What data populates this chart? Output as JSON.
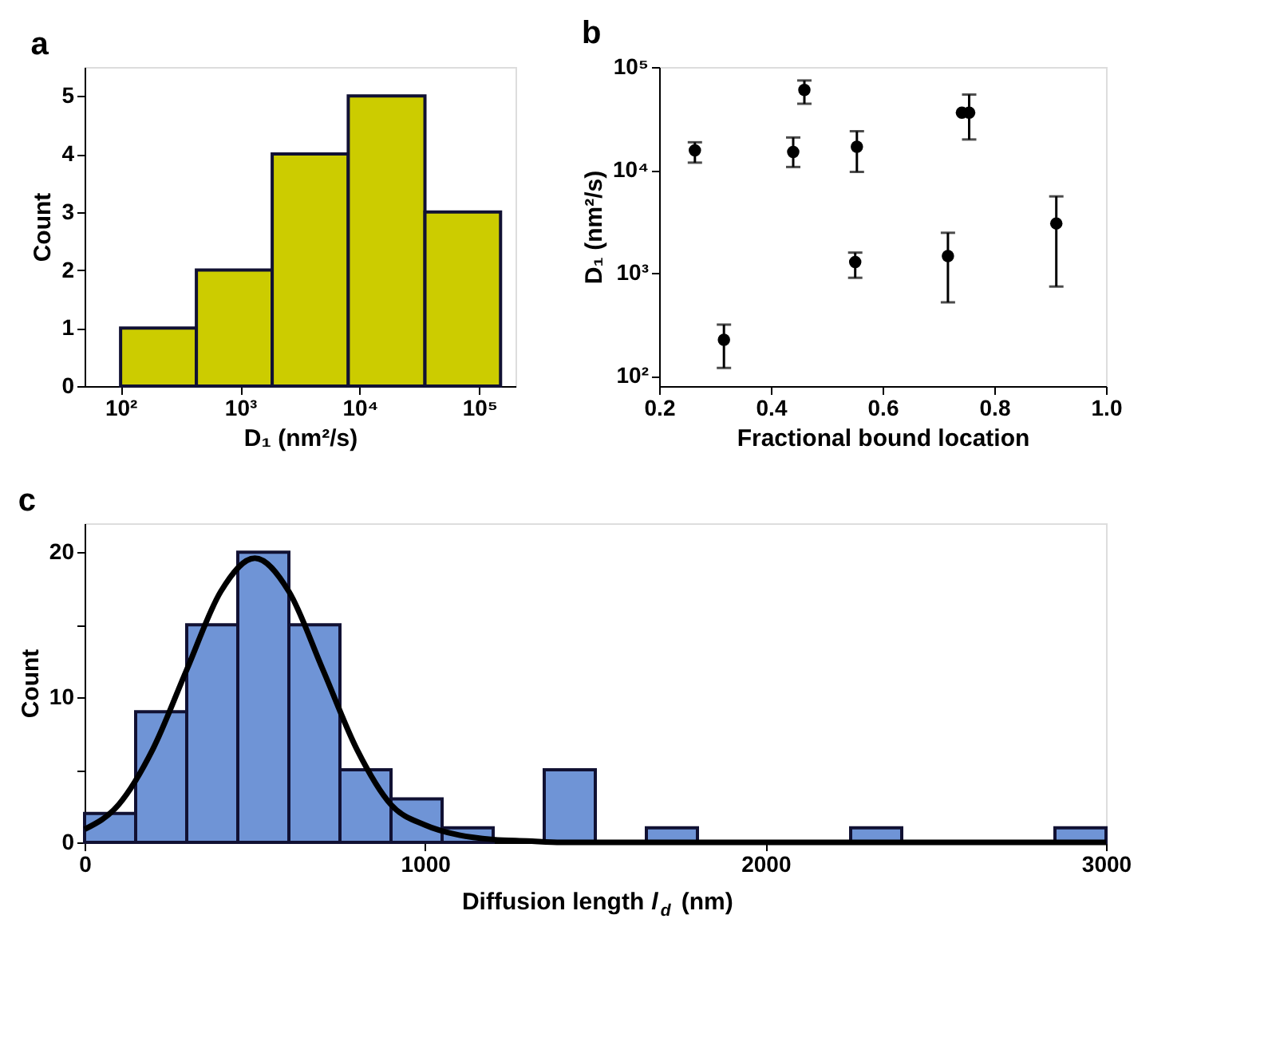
{
  "chart_data": [
    {
      "type": "histogram",
      "title": "a",
      "xlabel": "D₁ (nm²/s)",
      "ylabel": "Count",
      "log": "x",
      "bins": [
        100,
        430,
        1850,
        8000,
        35000,
        150000
      ],
      "values": [
        1,
        2,
        4,
        5,
        3
      ],
      "color": "#cccc00",
      "xlim": [
        50,
        200000
      ],
      "xticks": [
        {
          "value": 100,
          "label": "10²"
        },
        {
          "value": 1000,
          "label": "10³"
        },
        {
          "value": 10000,
          "label": "10⁴"
        },
        {
          "value": 100000,
          "label": "10⁵"
        }
      ],
      "ylim": [
        0,
        5.5
      ],
      "yticks": [
        0,
        1,
        2,
        3,
        4,
        5
      ],
      "grid": false
    },
    {
      "type": "scatter",
      "title": "b",
      "xlabel": "Fractional bound location",
      "ylabel": "D₁ (nm²/s)",
      "log": "y",
      "marker": "circle",
      "color": "#000000",
      "x": [
        0.264,
        0.316,
        0.44,
        0.46,
        0.554,
        0.551,
        0.717,
        0.742,
        0.755,
        0.911
      ],
      "values": [
        15500,
        225,
        15000,
        60000,
        16800,
        1280,
        1460,
        36000,
        36000,
        3030
      ],
      "errors": [
        [
          11800,
          18600
        ],
        [
          120,
          316
        ],
        [
          10700,
          20700
        ],
        [
          44000,
          74000
        ],
        [
          9600,
          23800
        ],
        [
          900,
          1580
        ],
        [
          520,
          2460
        ],
        null,
        [
          19800,
          54000
        ],
        [
          740,
          5550
        ]
      ],
      "xlim": [
        0.2,
        1.0
      ],
      "xticks": [
        0.2,
        0.4,
        0.6,
        0.8,
        {
          "value": 1.0,
          "label": "1.0"
        }
      ],
      "ylim": [
        80,
        100000
      ],
      "yticks": [
        {
          "value": 100,
          "label": "10²"
        },
        {
          "value": 1000,
          "label": "10³"
        },
        {
          "value": 10000,
          "label": "10⁴"
        },
        {
          "value": 100000,
          "label": "10⁵"
        }
      ],
      "grid": false
    },
    {
      "type": "histogram",
      "title": "c",
      "xlabel": "Diffusion length l$_{d}$ (nm)",
      "ylabel": "Count",
      "series": [
        {
          "type": "histogram",
          "color": "#6f94d6",
          "bins": [
            0,
            150,
            300,
            450,
            600,
            750,
            900,
            1050,
            1200,
            1350,
            1500,
            1650,
            1800,
            1950,
            2100,
            2250,
            2400,
            2550,
            2700,
            2850,
            3000
          ],
          "values": [
            2,
            9,
            15,
            20,
            15,
            5,
            3,
            1,
            0,
            5,
            0,
            1,
            0,
            0,
            0,
            1,
            0,
            0,
            0,
            1
          ]
        },
        {
          "type": "line",
          "color": "#000000",
          "x": [
            0,
            100,
            200,
            300,
            400,
            500,
            600,
            700,
            800,
            900,
            1000,
            1100,
            1200,
            1300,
            1400,
            1600,
            2000,
            2500,
            3000
          ],
          "values": [
            0.9,
            2.6,
            6.4,
            11.9,
            17.3,
            19.6,
            17.3,
            11.9,
            6.4,
            2.6,
            1.2,
            0.5,
            0.2,
            0.1,
            0,
            0,
            0,
            0,
            0
          ]
        }
      ],
      "xlim": [
        0,
        3000
      ],
      "xticks": [
        0,
        1000,
        2000,
        3000
      ],
      "ylim": [
        0,
        22
      ],
      "yticks": [
        0,
        {
          "value": 5,
          "label": null
        },
        10,
        {
          "value": 15,
          "label": null
        },
        20
      ],
      "grid": false
    }
  ]
}
